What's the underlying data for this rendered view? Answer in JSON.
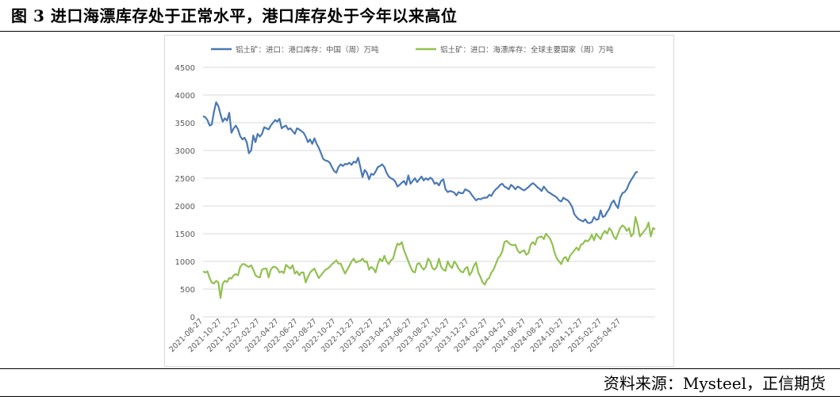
{
  "figure": {
    "title": "图 3  进口海漂库存处于正常水平，港口库存处于今年以来高位",
    "source": "资料来源：Mysteel，正信期货"
  },
  "colors": {
    "china_port": "#4a78b4",
    "seaborne": "#92c050",
    "grid": "#d9d9d9",
    "axis_text": "#595959"
  },
  "chart_data": {
    "type": "line",
    "title": "",
    "xlabel": "",
    "ylabel": "",
    "ylim": [
      0,
      4500
    ],
    "yticks": [
      0,
      500,
      1000,
      1500,
      2000,
      2500,
      3000,
      3500,
      4000,
      4500
    ],
    "grid": true,
    "legend_position": "top",
    "x_tick_labels": [
      "2021-08-27",
      "2021-10-27",
      "2021-12-27",
      "2022-02-27",
      "2022-04-27",
      "2022-06-27",
      "2022-08-27",
      "2022-10-27",
      "2022-12-27",
      "2023-02-27",
      "2023-04-27",
      "2023-06-27",
      "2023-08-27",
      "2023-10-27",
      "2023-12-27",
      "2024-02-27",
      "2024-04-27",
      "2024-06-27",
      "2024-08-27",
      "2024-10-27",
      "2024-12-27",
      "2025-02-27",
      "2025-04-27"
    ],
    "x_tick_index": [
      0,
      8.7,
      17.4,
      26.1,
      34.8,
      43.5,
      52.2,
      60.9,
      69.6,
      78.3,
      87,
      95.7,
      104.4,
      113.1,
      121.8,
      130.5,
      139.2,
      147.9,
      156.6,
      165.3,
      174,
      182.7,
      191.4
    ],
    "series": [
      {
        "name": "铝土矿：进口：港口库存：中国（周）万吨",
        "values": [
          3620,
          3600,
          3550,
          3450,
          3470,
          3700,
          3870,
          3800,
          3650,
          3520,
          3580,
          3540,
          3680,
          3320,
          3400,
          3450,
          3380,
          3260,
          3200,
          3230,
          3150,
          2950,
          3000,
          3270,
          3150,
          3300,
          3250,
          3300,
          3420,
          3400,
          3380,
          3450,
          3500,
          3550,
          3520,
          3570,
          3400,
          3430,
          3450,
          3380,
          3400,
          3350,
          3300,
          3400,
          3380,
          3350,
          3320,
          3250,
          3150,
          3200,
          3120,
          3220,
          3120,
          3050,
          2950,
          2850,
          2820,
          2810,
          2780,
          2700,
          2630,
          2600,
          2700,
          2750,
          2720,
          2760,
          2750,
          2780,
          2740,
          2800,
          2780,
          2870,
          2700,
          2520,
          2650,
          2600,
          2480,
          2580,
          2560,
          2620,
          2700,
          2720,
          2750,
          2700,
          2600,
          2530,
          2500,
          2480,
          2440,
          2350,
          2380,
          2420,
          2450,
          2380,
          2550,
          2400,
          2450,
          2500,
          2430,
          2480,
          2530,
          2460,
          2500,
          2470,
          2510,
          2480,
          2400,
          2420,
          2370,
          2450,
          2480,
          2300,
          2250,
          2270,
          2260,
          2240,
          2190,
          2250,
          2230,
          2230,
          2300,
          2280,
          2260,
          2200,
          2150,
          2100,
          2130,
          2120,
          2140,
          2150,
          2150,
          2200,
          2180,
          2250,
          2300,
          2330,
          2380,
          2400,
          2350,
          2330,
          2300,
          2380,
          2350,
          2300,
          2350,
          2330,
          2300,
          2280,
          2310,
          2340,
          2380,
          2410,
          2380,
          2340,
          2310,
          2270,
          2350,
          2300,
          2250,
          2230,
          2200,
          2180,
          2150,
          2100,
          2080,
          2150,
          2120,
          2100,
          2050,
          1980,
          1850,
          1800,
          1760,
          1740,
          1720,
          1760,
          1700,
          1690,
          1710,
          1800,
          1750,
          1760,
          1920,
          1800,
          1820,
          1890,
          1950,
          2050,
          2100,
          2020,
          1960,
          2150,
          2230,
          2250,
          2300,
          2400,
          2470,
          2530,
          2600,
          2620
        ]
      },
      {
        "name": "铝土矿：进口：海漂库存：全球主要国家（周）万吨",
        "values": [
          820,
          800,
          820,
          700,
          620,
          600,
          650,
          620,
          340,
          600,
          650,
          630,
          700,
          690,
          750,
          770,
          750,
          900,
          950,
          950,
          920,
          900,
          930,
          850,
          750,
          720,
          710,
          850,
          870,
          870,
          710,
          850,
          900,
          900,
          870,
          800,
          820,
          790,
          940,
          900,
          870,
          930,
          780,
          820,
          750,
          800,
          800,
          620,
          720,
          800,
          840,
          870,
          780,
          700,
          750,
          800,
          850,
          870,
          900,
          950,
          980,
          1020,
          960,
          960,
          870,
          780,
          850,
          920,
          1000,
          1050,
          980,
          1000,
          1010,
          1050,
          990,
          1000,
          850,
          900,
          870,
          800,
          950,
          1050,
          1000,
          1100,
          1000,
          950,
          1020,
          1050,
          1200,
          1320,
          1300,
          1350,
          1200,
          1100,
          1000,
          900,
          820,
          800,
          950,
          970,
          900,
          850,
          900,
          1050,
          1000,
          880,
          850,
          900,
          1050,
          900,
          850,
          830,
          1000,
          920,
          880,
          1000,
          950,
          870,
          820,
          800,
          870,
          900,
          750,
          810,
          920,
          980,
          800,
          720,
          620,
          580,
          670,
          700,
          800,
          850,
          950,
          1050,
          1100,
          1180,
          1350,
          1370,
          1330,
          1300,
          1290,
          1300,
          1200,
          1150,
          1180,
          1200,
          1120,
          1150,
          1300,
          1350,
          1300,
          1420,
          1440,
          1450,
          1400,
          1500,
          1450,
          1400,
          1300,
          1150,
          1050,
          1000,
          950,
          1050,
          1080,
          1000,
          1100,
          1150,
          1200,
          1250,
          1200,
          1300,
          1320,
          1380,
          1360,
          1400,
          1480,
          1380,
          1500,
          1450,
          1400,
          1500,
          1550,
          1500,
          1600,
          1550,
          1450,
          1400,
          1500,
          1600,
          1650,
          1620,
          1550,
          1600,
          1450,
          1500,
          1800,
          1650,
          1450,
          1500,
          1550,
          1600,
          1700,
          1450,
          1600,
          1580
        ]
      }
    ]
  }
}
